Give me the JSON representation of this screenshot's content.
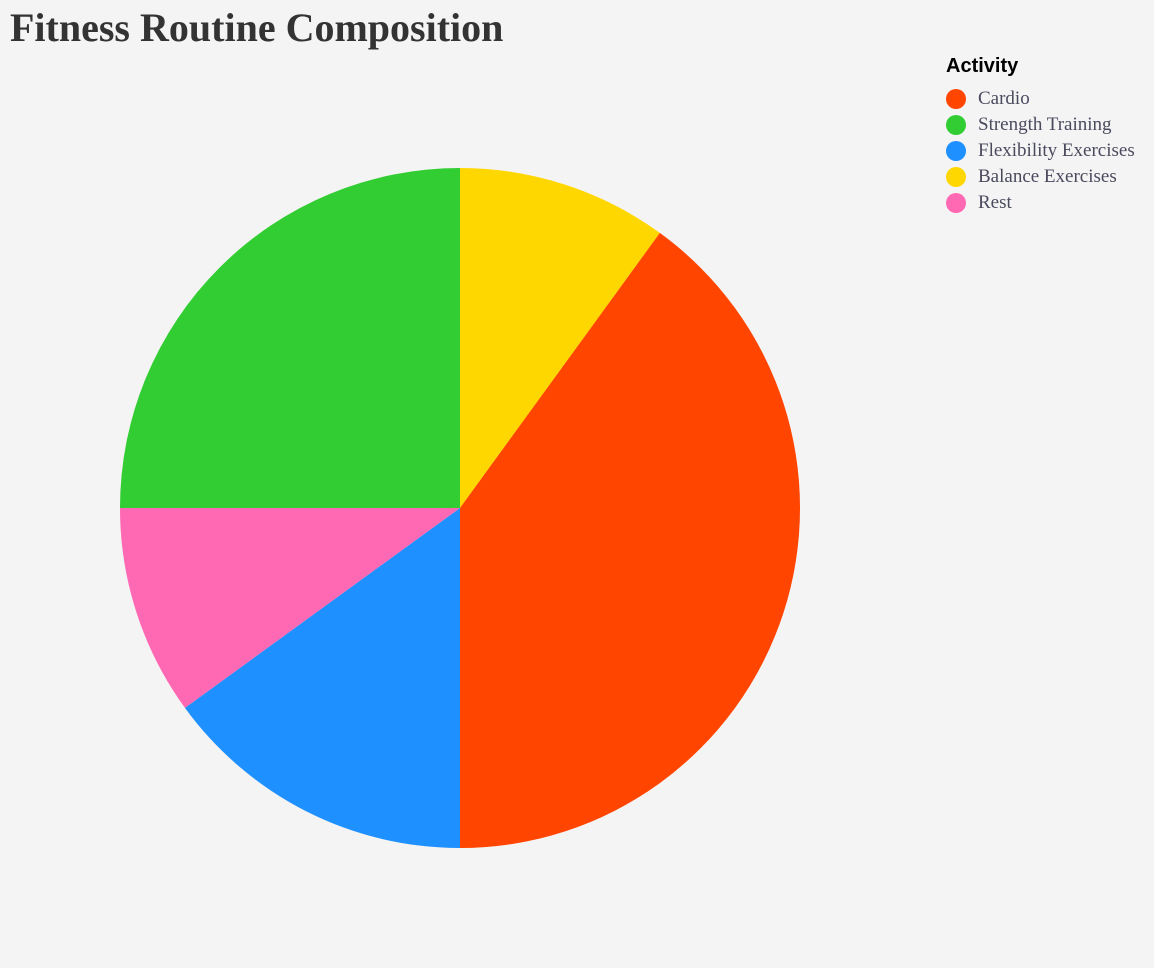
{
  "chart_data": {
    "type": "pie",
    "title": "Fitness Routine Composition",
    "legend_title": "Activity",
    "legend_position": "top-right",
    "start_angle": "12 o'clock",
    "direction": "clockwise",
    "slices": [
      {
        "label": "Cardio",
        "value": 40,
        "color": "#ff4500"
      },
      {
        "label": "Strength Training",
        "value": 25,
        "color": "#32cd32"
      },
      {
        "label": "Flexibility Exercises",
        "value": 15,
        "color": "#1e90ff"
      },
      {
        "label": "Balance Exercises",
        "value": 10,
        "color": "#ffd700"
      },
      {
        "label": "Rest",
        "value": 10,
        "color": "#ff69b4"
      }
    ],
    "draw_order": [
      "Balance Exercises",
      "Cardio",
      "Flexibility Exercises",
      "Rest",
      "Strength Training"
    ]
  }
}
